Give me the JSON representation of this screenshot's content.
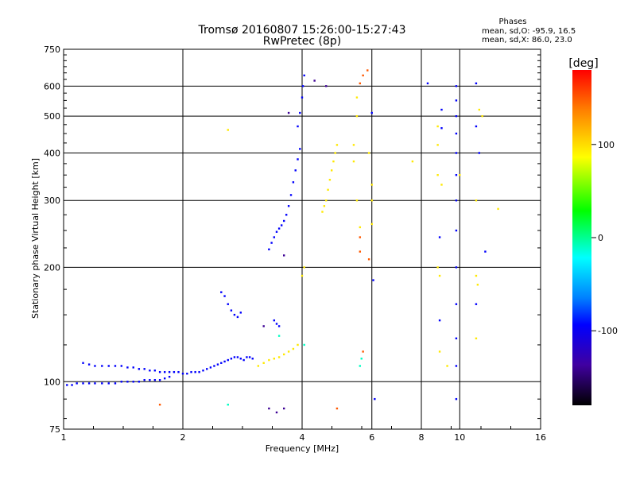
{
  "chart_data": {
    "type": "scatter",
    "title": "Tromsø 20160807 15:26:00-15:27:43",
    "subtitle": "RwPretec (8p)",
    "phase_box": {
      "heading": "Phases",
      "line_o": "mean, sd,O: -95.9, 16.5",
      "line_x": "mean, sd,X:  86.0, 23.0"
    },
    "xlabel": "Frequency [MHz]",
    "ylabel": "Stationary phase Virtual Height [km]",
    "x_scale": "log2",
    "y_scale": "log",
    "xlim": [
      1,
      16
    ],
    "ylim": [
      75,
      750
    ],
    "x_ticks": [
      1,
      2,
      4,
      6,
      8,
      10,
      16
    ],
    "x_tick_labels": [
      "1",
      "2",
      "4",
      "6",
      "8",
      "10",
      "16"
    ],
    "y_ticks": [
      75,
      100,
      200,
      300,
      400,
      500,
      600,
      750
    ],
    "y_tick_labels": [
      "75",
      "100",
      "200",
      "300",
      "400",
      "500",
      "600",
      "750"
    ],
    "grid": true,
    "colorbar": {
      "label": "[deg]",
      "range": [
        -180,
        180
      ],
      "ticks": [
        100,
        0,
        -100
      ],
      "tick_labels": [
        "100",
        "0",
        "-100"
      ]
    },
    "series": [
      {
        "phase": -95,
        "points": [
          [
            1.02,
            98
          ],
          [
            1.05,
            98
          ],
          [
            1.08,
            99
          ],
          [
            1.12,
            99
          ],
          [
            1.16,
            99
          ],
          [
            1.2,
            99
          ],
          [
            1.25,
            99
          ],
          [
            1.3,
            99
          ],
          [
            1.35,
            99
          ],
          [
            1.4,
            100
          ],
          [
            1.45,
            100
          ],
          [
            1.5,
            100
          ],
          [
            1.55,
            100
          ],
          [
            1.6,
            101
          ],
          [
            1.65,
            101
          ],
          [
            1.7,
            101
          ],
          [
            1.75,
            101
          ],
          [
            1.8,
            102
          ],
          [
            1.85,
            103
          ],
          [
            1.12,
            112
          ],
          [
            1.16,
            111
          ],
          [
            1.2,
            110
          ],
          [
            1.25,
            110
          ],
          [
            1.3,
            110
          ],
          [
            1.35,
            110
          ],
          [
            1.4,
            110
          ],
          [
            1.45,
            109
          ],
          [
            1.5,
            109
          ],
          [
            1.55,
            108
          ],
          [
            1.6,
            108
          ],
          [
            1.65,
            107
          ],
          [
            1.7,
            107
          ],
          [
            1.75,
            106
          ],
          [
            1.8,
            106
          ],
          [
            1.85,
            106
          ],
          [
            1.9,
            106
          ],
          [
            1.95,
            106
          ],
          [
            2.0,
            105
          ],
          [
            2.05,
            105
          ],
          [
            2.1,
            106
          ],
          [
            2.15,
            106
          ],
          [
            2.2,
            106
          ],
          [
            2.25,
            107
          ],
          [
            2.3,
            108
          ],
          [
            2.35,
            109
          ],
          [
            2.4,
            110
          ],
          [
            2.45,
            111
          ],
          [
            2.5,
            112
          ],
          [
            2.55,
            113
          ],
          [
            2.6,
            114
          ],
          [
            2.65,
            115
          ],
          [
            2.7,
            116
          ],
          [
            2.75,
            116
          ],
          [
            2.8,
            115
          ],
          [
            2.85,
            114
          ],
          [
            2.9,
            116
          ],
          [
            2.95,
            116
          ],
          [
            3.0,
            115
          ],
          [
            2.5,
            172
          ],
          [
            2.55,
            168
          ],
          [
            2.6,
            160
          ],
          [
            2.65,
            154
          ],
          [
            2.7,
            150
          ],
          [
            2.75,
            148
          ],
          [
            2.8,
            152
          ],
          [
            3.3,
            223
          ],
          [
            3.35,
            232
          ],
          [
            3.4,
            240
          ],
          [
            3.45,
            248
          ],
          [
            3.5,
            253
          ],
          [
            3.55,
            258
          ],
          [
            3.6,
            265
          ],
          [
            3.65,
            275
          ],
          [
            3.7,
            290
          ],
          [
            3.75,
            310
          ],
          [
            3.8,
            335
          ],
          [
            3.85,
            360
          ],
          [
            3.9,
            385
          ],
          [
            3.95,
            410
          ],
          [
            3.9,
            470
          ],
          [
            3.95,
            510
          ],
          [
            4.0,
            560
          ],
          [
            4.02,
            600
          ],
          [
            4.05,
            640
          ],
          [
            3.4,
            145
          ],
          [
            3.45,
            142
          ],
          [
            3.5,
            140
          ],
          [
            6.0,
            510
          ],
          [
            6.05,
            185
          ],
          [
            6.1,
            90
          ],
          [
            8.3,
            610
          ],
          [
            8.9,
            240
          ],
          [
            8.9,
            145
          ],
          [
            9.0,
            465
          ],
          [
            9.0,
            520
          ],
          [
            9.8,
            600
          ],
          [
            9.8,
            550
          ],
          [
            9.8,
            500
          ],
          [
            9.8,
            450
          ],
          [
            9.8,
            400
          ],
          [
            9.8,
            350
          ],
          [
            9.8,
            300
          ],
          [
            9.8,
            250
          ],
          [
            9.8,
            200
          ],
          [
            9.8,
            160
          ],
          [
            9.8,
            130
          ],
          [
            9.8,
            110
          ],
          [
            9.8,
            90
          ],
          [
            11.0,
            610
          ],
          [
            11.0,
            470
          ],
          [
            11.2,
            400
          ],
          [
            11.6,
            220
          ],
          [
            11.0,
            160
          ]
        ]
      },
      {
        "phase": 95,
        "points": [
          [
            3.1,
            110
          ],
          [
            3.2,
            112
          ],
          [
            3.3,
            114
          ],
          [
            3.4,
            115
          ],
          [
            3.5,
            116
          ],
          [
            3.6,
            118
          ],
          [
            3.7,
            120
          ],
          [
            3.8,
            122
          ],
          [
            3.9,
            125
          ],
          [
            4.5,
            280
          ],
          [
            4.55,
            290
          ],
          [
            4.6,
            300
          ],
          [
            4.65,
            320
          ],
          [
            4.7,
            340
          ],
          [
            4.75,
            360
          ],
          [
            4.8,
            380
          ],
          [
            4.85,
            400
          ],
          [
            4.9,
            420
          ],
          [
            5.4,
            420
          ],
          [
            5.4,
            380
          ],
          [
            5.5,
            300
          ],
          [
            5.6,
            255
          ],
          [
            5.5,
            560
          ],
          [
            5.5,
            500
          ],
          [
            6.0,
            330
          ],
          [
            6.0,
            300
          ],
          [
            6.0,
            260
          ],
          [
            5.9,
            400
          ],
          [
            4.05,
            200
          ],
          [
            4.0,
            190
          ],
          [
            8.8,
            470
          ],
          [
            8.8,
            420
          ],
          [
            8.8,
            350
          ],
          [
            8.8,
            200
          ],
          [
            8.9,
            190
          ],
          [
            8.9,
            120
          ],
          [
            9.0,
            330
          ],
          [
            9.3,
            110
          ],
          [
            10.0,
            350
          ],
          [
            11.0,
            130
          ],
          [
            11.0,
            190
          ],
          [
            11.1,
            180
          ],
          [
            11.0,
            300
          ],
          [
            11.2,
            520
          ],
          [
            11.4,
            500
          ],
          [
            12.5,
            285
          ],
          [
            2.6,
            460
          ],
          [
            7.6,
            380
          ]
        ]
      },
      {
        "phase": 150,
        "points": [
          [
            5.6,
            610
          ],
          [
            5.7,
            640
          ],
          [
            5.85,
            660
          ],
          [
            5.6,
            240
          ],
          [
            5.6,
            220
          ],
          [
            5.9,
            210
          ],
          [
            5.7,
            120
          ],
          [
            4.9,
            85
          ],
          [
            1.75,
            87
          ]
        ]
      },
      {
        "phase": -10,
        "points": [
          [
            5.6,
            110
          ],
          [
            5.65,
            115
          ],
          [
            2.6,
            87
          ],
          [
            3.5,
            132
          ],
          [
            4.05,
            125
          ]
        ]
      },
      {
        "phase": -140,
        "points": [
          [
            3.6,
            215
          ],
          [
            3.7,
            510
          ],
          [
            3.3,
            85
          ],
          [
            3.45,
            83
          ],
          [
            3.6,
            85
          ],
          [
            3.2,
            140
          ],
          [
            4.6,
            600
          ],
          [
            4.3,
            620
          ]
        ]
      }
    ]
  }
}
